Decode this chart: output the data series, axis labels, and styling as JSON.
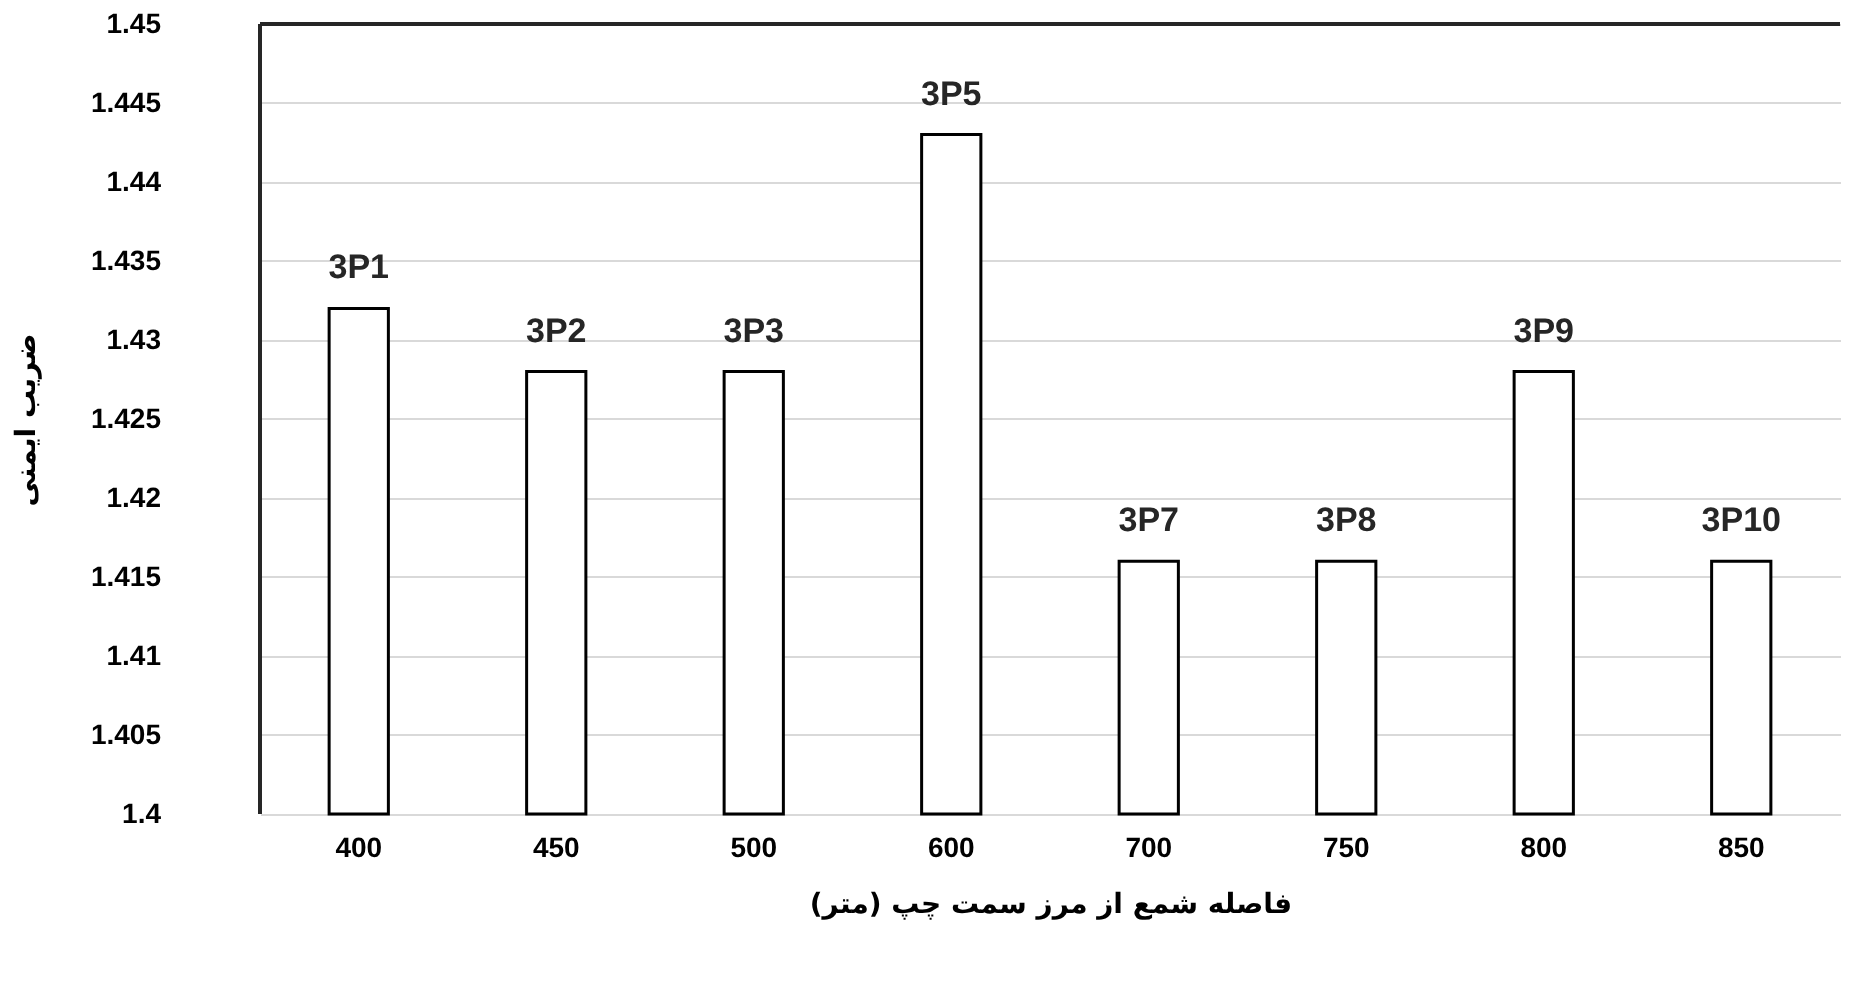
{
  "chart_data": {
    "type": "bar",
    "xlabel": "فاصله شمع از مرز سمت چپ (متر)",
    "ylabel": "ضریب ایمنی",
    "categories": [
      "400",
      "450",
      "500",
      "600",
      "700",
      "750",
      "800",
      "850"
    ],
    "values": [
      1.432,
      1.428,
      1.428,
      1.443,
      1.416,
      1.416,
      1.428,
      1.416
    ],
    "annotations": [
      {
        "text": "3P1",
        "x": "400",
        "y": 1.432
      },
      {
        "text": "3P2",
        "x": "450",
        "y": 1.428
      },
      {
        "text": "3P3",
        "x": "500",
        "y": 1.428
      },
      {
        "text": "3P5",
        "x": "600",
        "y": 1.443
      },
      {
        "text": "3P7",
        "x": "700",
        "y": 1.416
      },
      {
        "text": "3P8",
        "x": "750",
        "y": 1.416
      },
      {
        "text": "3P9",
        "x": "800",
        "y": 1.428
      },
      {
        "text": "3P10",
        "x": "850",
        "y": 1.416
      }
    ],
    "color": "#ffffff",
    "ylim": [
      1.4,
      1.45
    ],
    "yticks": [
      1.4,
      1.405,
      1.41,
      1.415,
      1.42,
      1.425,
      1.43,
      1.435,
      1.44,
      1.445,
      1.45
    ],
    "grid": "y"
  }
}
